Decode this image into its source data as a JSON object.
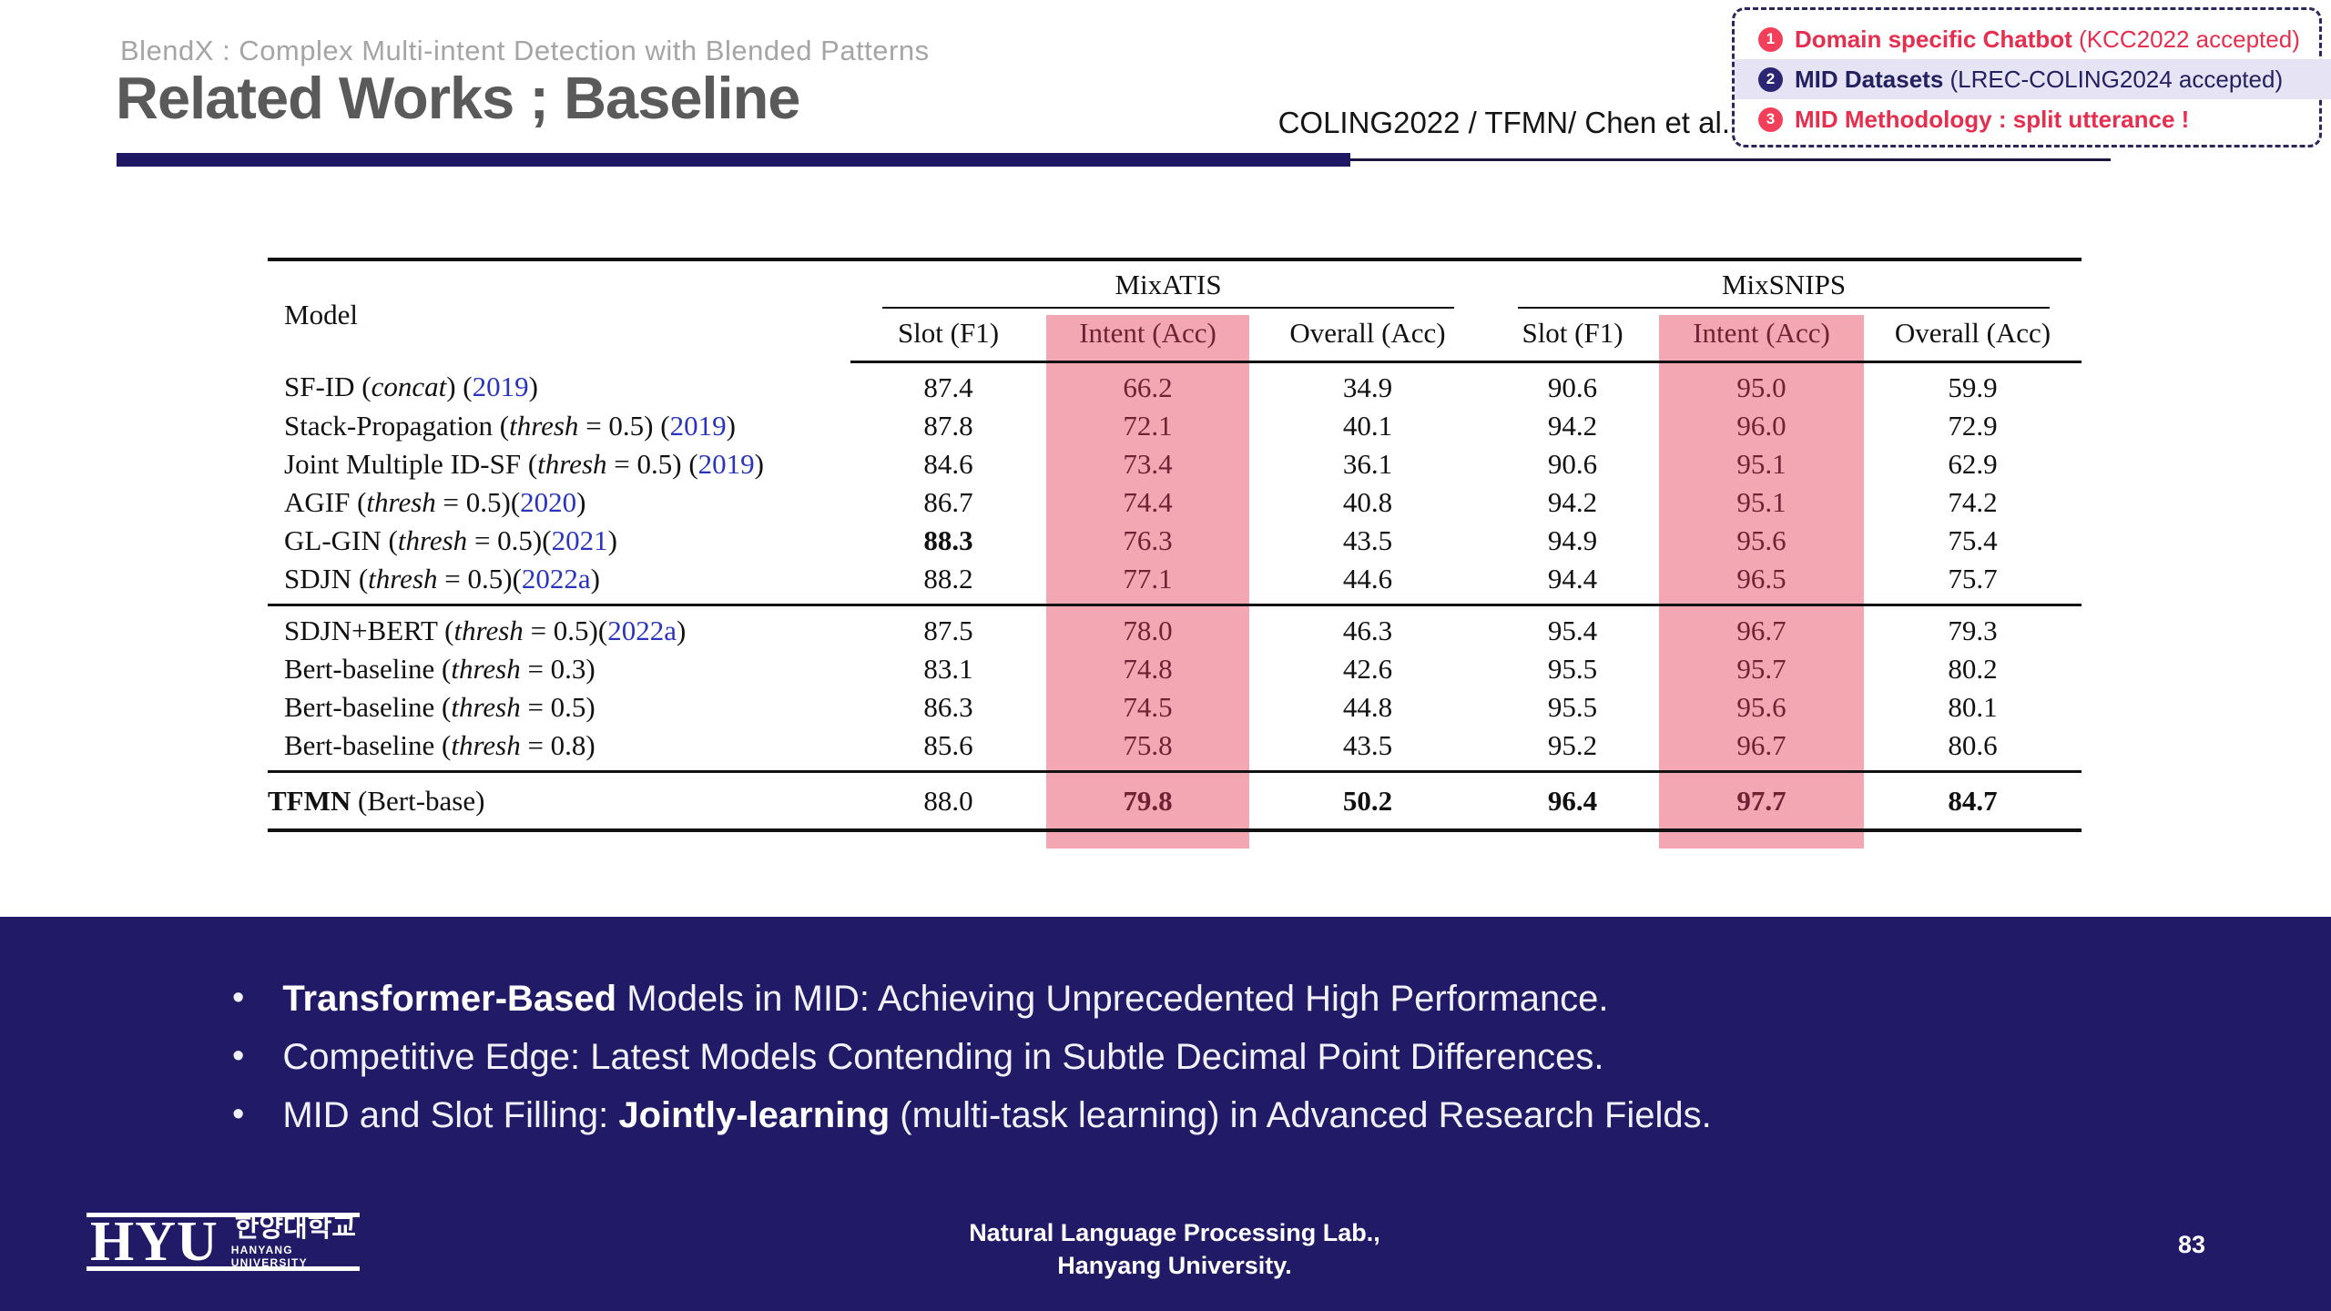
{
  "header": {
    "subtitle": "BlendX : Complex Multi-intent Detection with Blended Patterns",
    "title": "Related Works ; Baseline",
    "reference": "COLING2022 / TFMN/ Chen et al."
  },
  "callout": {
    "items": [
      {
        "badge": "1",
        "style": "red",
        "bold": "Domain specific Chatbot",
        "normal": " (KCC2022 accepted)",
        "highlighted": false
      },
      {
        "badge": "2",
        "style": "navy",
        "bold": "MID Datasets",
        "normal": " (LREC-COLING2024 accepted)",
        "highlighted": true
      },
      {
        "badge": "3",
        "style": "red",
        "bold": "MID Methodology : split utterance !",
        "normal": "",
        "highlighted": false
      }
    ]
  },
  "table": {
    "model_header": "Model",
    "col_groups": [
      "MixATIS",
      "MixSNIPS"
    ],
    "sub_headers": [
      "Slot (F1)",
      "Intent (Acc)",
      "Overall (Acc)",
      "Slot (F1)",
      "Intent (Acc)",
      "Overall (Acc)"
    ],
    "intent_col_indexes": [
      1,
      4
    ],
    "groups": [
      {
        "rows": [
          {
            "name": [
              {
                "t": "SF-ID (",
                "s": "n"
              },
              {
                "t": "concat",
                "s": "i"
              },
              {
                "t": ") (",
                "s": "n"
              },
              {
                "t": "2019",
                "s": "y"
              },
              {
                "t": ")",
                "s": "n"
              }
            ],
            "values": [
              {
                "t": "87.4"
              },
              {
                "t": "66.2"
              },
              {
                "t": "34.9"
              },
              {
                "t": "90.6"
              },
              {
                "t": "95.0"
              },
              {
                "t": "59.9"
              }
            ]
          },
          {
            "name": [
              {
                "t": "Stack-Propagation (",
                "s": "n"
              },
              {
                "t": "thresh",
                "s": "i"
              },
              {
                "t": " = 0.5) (",
                "s": "n"
              },
              {
                "t": "2019",
                "s": "y"
              },
              {
                "t": ")",
                "s": "n"
              }
            ],
            "values": [
              {
                "t": "87.8"
              },
              {
                "t": "72.1"
              },
              {
                "t": "40.1"
              },
              {
                "t": "94.2"
              },
              {
                "t": "96.0"
              },
              {
                "t": "72.9"
              }
            ]
          },
          {
            "name": [
              {
                "t": "Joint Multiple ID-SF (",
                "s": "n"
              },
              {
                "t": "thresh",
                "s": "i"
              },
              {
                "t": " = 0.5) (",
                "s": "n"
              },
              {
                "t": "2019",
                "s": "y"
              },
              {
                "t": ")",
                "s": "n"
              }
            ],
            "values": [
              {
                "t": "84.6"
              },
              {
                "t": "73.4"
              },
              {
                "t": "36.1"
              },
              {
                "t": "90.6"
              },
              {
                "t": "95.1"
              },
              {
                "t": "62.9"
              }
            ]
          },
          {
            "name": [
              {
                "t": "AGIF (",
                "s": "n"
              },
              {
                "t": "thresh",
                "s": "i"
              },
              {
                "t": " = 0.5)(",
                "s": "n"
              },
              {
                "t": "2020",
                "s": "y"
              },
              {
                "t": ")",
                "s": "n"
              }
            ],
            "values": [
              {
                "t": "86.7"
              },
              {
                "t": "74.4"
              },
              {
                "t": "40.8"
              },
              {
                "t": "94.2"
              },
              {
                "t": "95.1"
              },
              {
                "t": "74.2"
              }
            ]
          },
          {
            "name": [
              {
                "t": "GL-GIN (",
                "s": "n"
              },
              {
                "t": "thresh",
                "s": "i"
              },
              {
                "t": " = 0.5)(",
                "s": "n"
              },
              {
                "t": "2021",
                "s": "y"
              },
              {
                "t": ")",
                "s": "n"
              }
            ],
            "values": [
              {
                "t": "88.3",
                "b": true
              },
              {
                "t": "76.3"
              },
              {
                "t": "43.5"
              },
              {
                "t": "94.9"
              },
              {
                "t": "95.6"
              },
              {
                "t": "75.4"
              }
            ]
          },
          {
            "name": [
              {
                "t": "SDJN (",
                "s": "n"
              },
              {
                "t": "thresh",
                "s": "i"
              },
              {
                "t": " = 0.5)(",
                "s": "n"
              },
              {
                "t": "2022a",
                "s": "y"
              },
              {
                "t": ")",
                "s": "n"
              }
            ],
            "values": [
              {
                "t": "88.2"
              },
              {
                "t": "77.1"
              },
              {
                "t": "44.6"
              },
              {
                "t": "94.4"
              },
              {
                "t": "96.5"
              },
              {
                "t": "75.7"
              }
            ]
          }
        ]
      },
      {
        "rows": [
          {
            "name": [
              {
                "t": "SDJN+BERT (",
                "s": "n"
              },
              {
                "t": "thresh",
                "s": "i"
              },
              {
                "t": " = 0.5)(",
                "s": "n"
              },
              {
                "t": "2022a",
                "s": "y"
              },
              {
                "t": ")",
                "s": "n"
              }
            ],
            "values": [
              {
                "t": "87.5"
              },
              {
                "t": "78.0"
              },
              {
                "t": "46.3"
              },
              {
                "t": "95.4"
              },
              {
                "t": "96.7"
              },
              {
                "t": "79.3"
              }
            ]
          },
          {
            "name": [
              {
                "t": "Bert-baseline (",
                "s": "n"
              },
              {
                "t": "thresh",
                "s": "i"
              },
              {
                "t": " = 0.3)",
                "s": "n"
              }
            ],
            "values": [
              {
                "t": "83.1"
              },
              {
                "t": "74.8"
              },
              {
                "t": "42.6"
              },
              {
                "t": "95.5"
              },
              {
                "t": "95.7"
              },
              {
                "t": "80.2"
              }
            ]
          },
          {
            "name": [
              {
                "t": "Bert-baseline (",
                "s": "n"
              },
              {
                "t": "thresh",
                "s": "i"
              },
              {
                "t": " = 0.5)",
                "s": "n"
              }
            ],
            "values": [
              {
                "t": "86.3"
              },
              {
                "t": "74.5"
              },
              {
                "t": "44.8"
              },
              {
                "t": "95.5"
              },
              {
                "t": "95.6"
              },
              {
                "t": "80.1"
              }
            ]
          },
          {
            "name": [
              {
                "t": "Bert-baseline (",
                "s": "n"
              },
              {
                "t": "thresh",
                "s": "i"
              },
              {
                "t": " = 0.8)",
                "s": "n"
              }
            ],
            "values": [
              {
                "t": "85.6"
              },
              {
                "t": "75.8"
              },
              {
                "t": "43.5"
              },
              {
                "t": "95.2"
              },
              {
                "t": "96.7"
              },
              {
                "t": "80.6"
              }
            ]
          }
        ]
      },
      {
        "rows": [
          {
            "name": [
              {
                "t": "TFMN",
                "s": "b"
              },
              {
                "t": " (Bert-base)",
                "s": "n"
              }
            ],
            "values": [
              {
                "t": "88.0"
              },
              {
                "t": "79.8",
                "b": true
              },
              {
                "t": "50.2",
                "b": true
              },
              {
                "t": "96.4",
                "b": true
              },
              {
                "t": "97.7",
                "b": true
              },
              {
                "t": "84.7",
                "b": true
              }
            ]
          }
        ]
      }
    ]
  },
  "bullets": [
    [
      {
        "t": "Transformer-Based",
        "b": true
      },
      {
        "t": " Models in MID: Achieving Unprecedented High Performance.",
        "b": false
      }
    ],
    [
      {
        "t": "Competitive Edge: Latest Models Contending in Subtle Decimal Point Differences.",
        "b": false
      }
    ],
    [
      {
        "t": "MID and Slot Filling: ",
        "b": false
      },
      {
        "t": "Jointly-learning",
        "b": true
      },
      {
        "t": " (multi-task learning) in Advanced Research Fields.",
        "b": false
      }
    ]
  ],
  "footer": {
    "logo_acronym": "HYU",
    "logo_korean": "한양대학교",
    "logo_english": "HANYANG UNIVERSITY",
    "lab_line1": "Natural Language Processing Lab.,",
    "lab_line2": "Hanyang University.",
    "page_number": "83"
  },
  "colors": {
    "navy_band": "#211a67",
    "title_underline": "#1e1865",
    "pink_highlight": "#f3a7b3",
    "intent_text_maroon": "#6d2334",
    "year_link_blue": "#2a35bd",
    "callout_red": "#e62e4e",
    "callout_navy": "#232060",
    "callout_row_highlight": "#e6e4f4",
    "title_gray": "#5a5a5a"
  }
}
